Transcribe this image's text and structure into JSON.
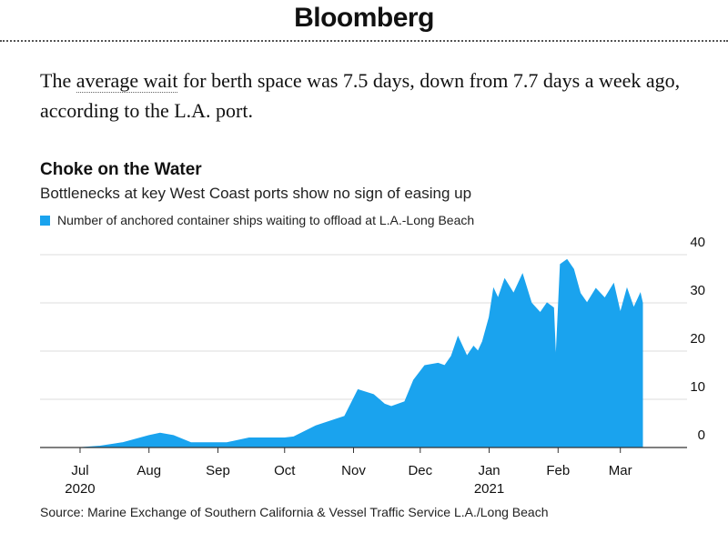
{
  "header": {
    "brand": "Bloomberg"
  },
  "article": {
    "lede_before": "The ",
    "lede_link": "average wait",
    "lede_after": " for berth space was 7.5 days, down from 7.7 days a week ago, according to the L.A. port."
  },
  "colors": {
    "area": "#1aa3ee",
    "grid": "#dddddd",
    "axis": "#333333"
  },
  "chart_data": {
    "type": "area",
    "title": "Choke on the Water",
    "subtitle": "Bottlenecks at key West Coast ports show no sign of easing up",
    "series": [
      {
        "name": "Number of anchored container ships waiting to offload at L.A.-Long Beach",
        "points": [
          [
            "2020-07-01",
            0
          ],
          [
            "2020-07-10",
            0.3
          ],
          [
            "2020-07-20",
            1
          ],
          [
            "2020-08-01",
            2.5
          ],
          [
            "2020-08-06",
            3
          ],
          [
            "2020-08-12",
            2.5
          ],
          [
            "2020-08-20",
            1
          ],
          [
            "2020-09-01",
            1
          ],
          [
            "2020-09-05",
            1
          ],
          [
            "2020-09-15",
            2
          ],
          [
            "2020-10-01",
            2
          ],
          [
            "2020-10-05",
            2.2
          ],
          [
            "2020-10-15",
            4.5
          ],
          [
            "2020-10-28",
            6.5
          ],
          [
            "2020-11-03",
            12
          ],
          [
            "2020-11-10",
            11
          ],
          [
            "2020-11-15",
            9
          ],
          [
            "2020-11-18",
            8.5
          ],
          [
            "2020-11-24",
            9.5
          ],
          [
            "2020-11-28",
            14
          ],
          [
            "2020-12-03",
            17
          ],
          [
            "2020-12-09",
            17.5
          ],
          [
            "2020-12-12",
            17
          ],
          [
            "2020-12-15",
            19
          ],
          [
            "2020-12-18",
            23
          ],
          [
            "2020-12-22",
            19
          ],
          [
            "2020-12-25",
            21
          ],
          [
            "2020-12-27",
            20
          ],
          [
            "2020-12-29",
            22
          ],
          [
            "2021-01-01",
            27
          ],
          [
            "2021-01-03",
            33
          ],
          [
            "2021-01-05",
            31
          ],
          [
            "2021-01-08",
            35
          ],
          [
            "2021-01-12",
            32
          ],
          [
            "2021-01-16",
            36
          ],
          [
            "2021-01-20",
            30
          ],
          [
            "2021-01-24",
            28
          ],
          [
            "2021-01-27",
            30
          ],
          [
            "2021-01-30",
            29
          ],
          [
            "2021-01-31",
            18
          ],
          [
            "2021-02-02",
            38
          ],
          [
            "2021-02-05",
            39
          ],
          [
            "2021-02-08",
            37
          ],
          [
            "2021-02-11",
            32
          ],
          [
            "2021-02-14",
            30
          ],
          [
            "2021-02-18",
            33
          ],
          [
            "2021-02-22",
            31
          ],
          [
            "2021-02-26",
            34
          ],
          [
            "2021-03-01",
            28
          ],
          [
            "2021-03-04",
            33
          ],
          [
            "2021-03-07",
            29
          ],
          [
            "2021-03-10",
            32
          ],
          [
            "2021-03-11",
            30
          ]
        ]
      }
    ],
    "y_ticks": [
      "0",
      "10",
      "20",
      "30",
      "40"
    ],
    "x_ticks": [
      {
        "date": "2020-07-01",
        "label": "Jul",
        "year": "2020"
      },
      {
        "date": "2020-08-01",
        "label": "Aug",
        "year": ""
      },
      {
        "date": "2020-09-01",
        "label": "Sep",
        "year": ""
      },
      {
        "date": "2020-10-01",
        "label": "Oct",
        "year": ""
      },
      {
        "date": "2020-11-01",
        "label": "Nov",
        "year": ""
      },
      {
        "date": "2020-12-01",
        "label": "Dec",
        "year": ""
      },
      {
        "date": "2021-01-01",
        "label": "Jan",
        "year": "2021"
      },
      {
        "date": "2021-02-01",
        "label": "Feb",
        "year": ""
      },
      {
        "date": "2021-03-01",
        "label": "Mar",
        "year": ""
      }
    ],
    "ylim": [
      0,
      40
    ],
    "xlim": [
      "2020-06-13",
      "2021-03-31"
    ],
    "grid": true,
    "legend_position": "top-left",
    "y_axis_position": "right"
  },
  "footer": {
    "source": "Source: Marine Exchange of Southern California & Vessel Traffic Service L.A./Long Beach"
  }
}
